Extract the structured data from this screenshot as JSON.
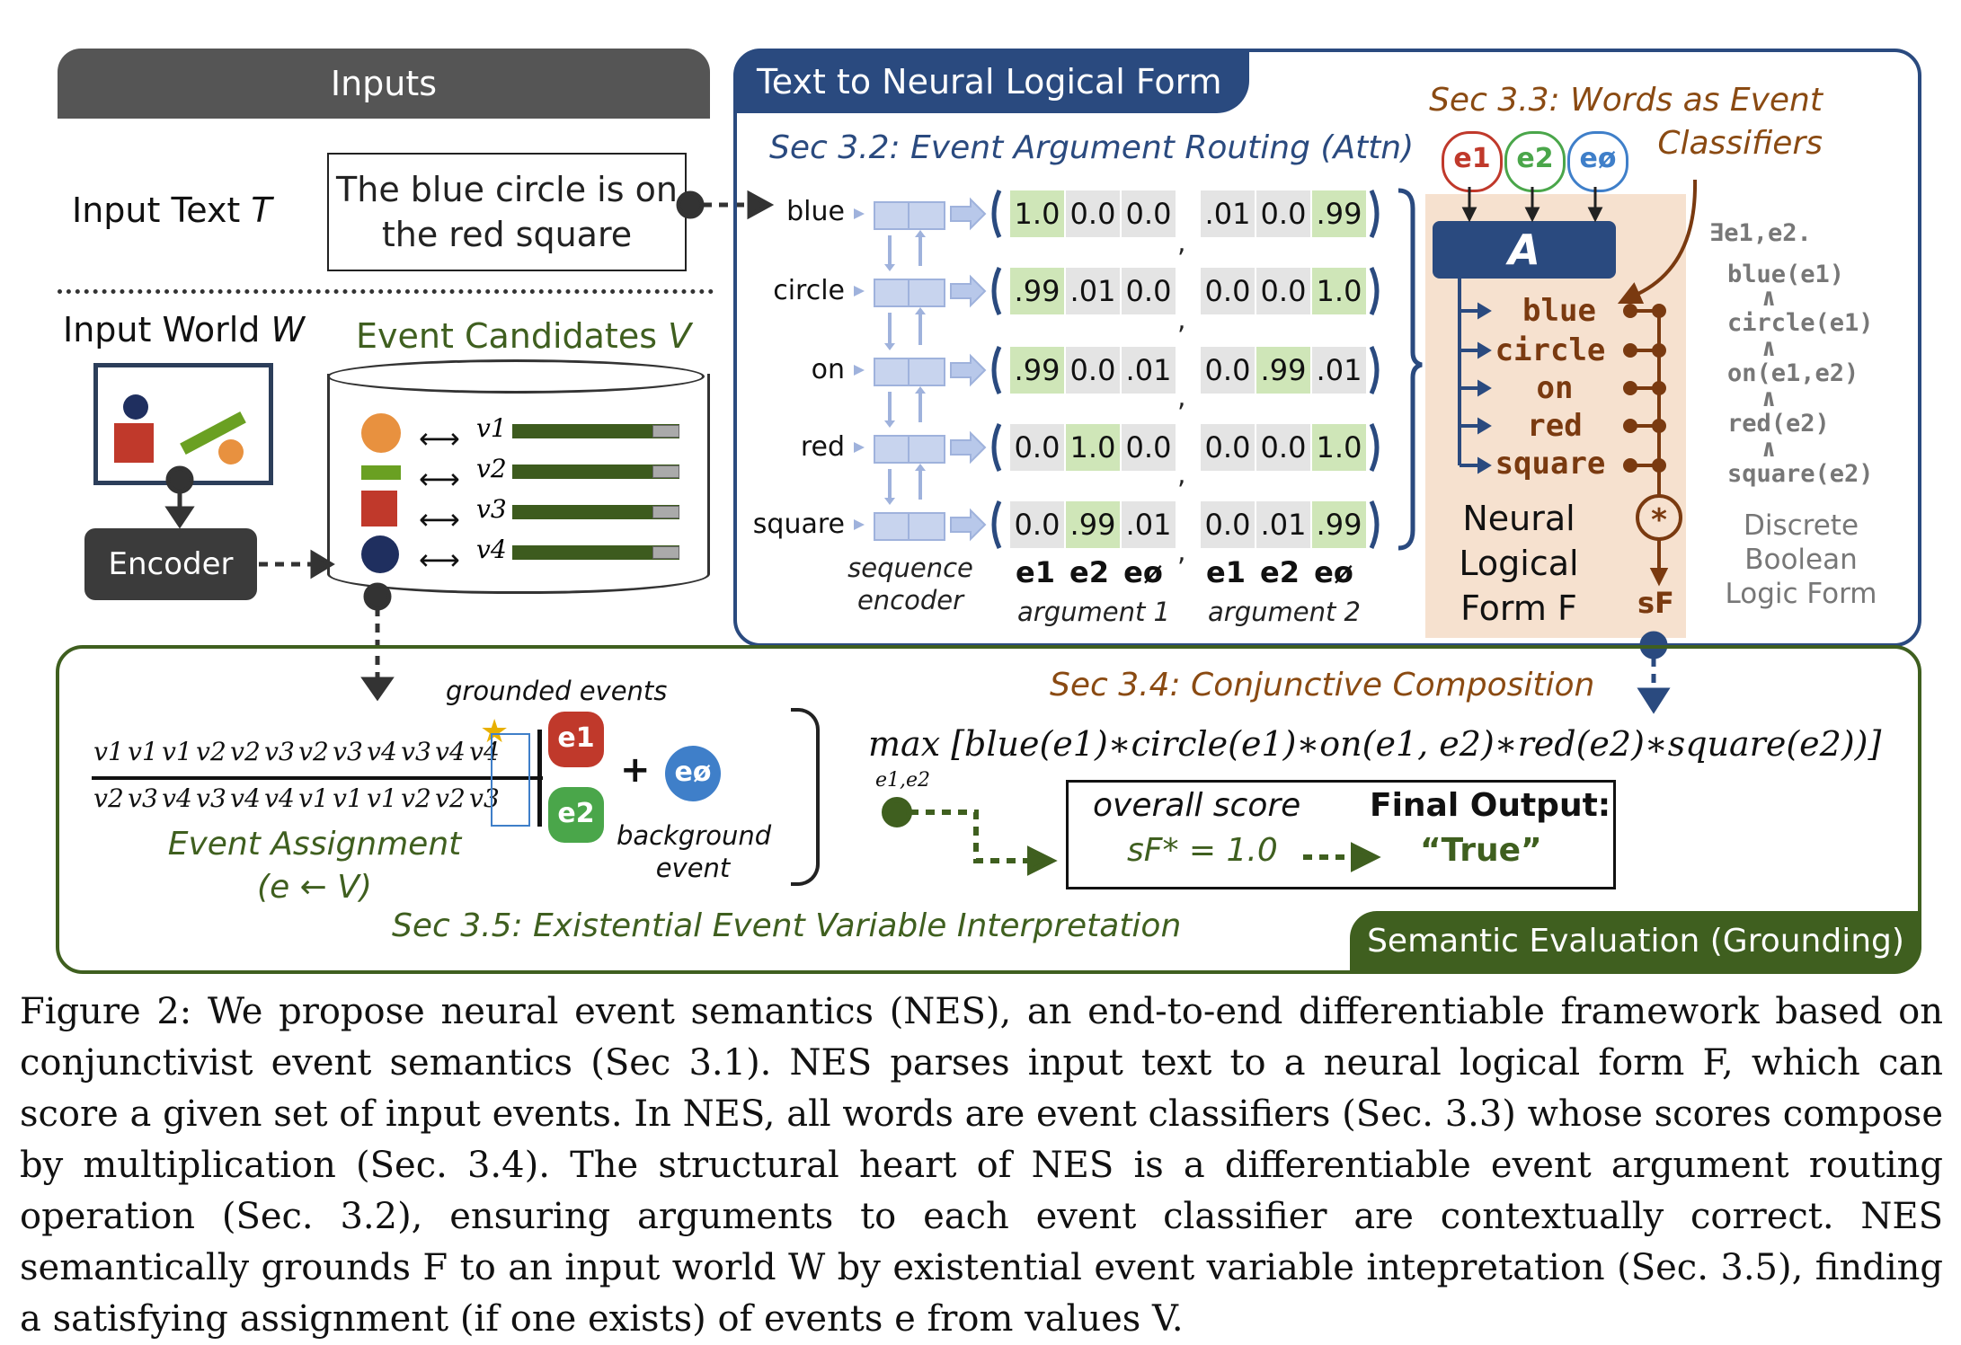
{
  "inputs_header": "Inputs",
  "input_text_label": "Input Text",
  "input_text_symbol": "T",
  "input_text_value": "The blue circle is on the red square",
  "input_world_label": "Input World",
  "input_world_symbol": "W",
  "encoder_label": "Encoder",
  "event_candidates_label": "Event Candidates",
  "event_candidates_symbol": "V",
  "candidates": [
    "v1",
    "v2",
    "v3",
    "v4"
  ],
  "nlf_header": "Text to Neural Logical Form",
  "sec32": "Sec 3.2: Event Argument Routing (Attn)",
  "sec33": "Sec 3.3: Words as Event Classifiers",
  "event_symbols": [
    "e1",
    "e2",
    "eø"
  ],
  "classifier_block": "A",
  "words": [
    "blue",
    "circle",
    "on",
    "red",
    "square"
  ],
  "arg1_values": [
    [
      "1.0",
      "0.0",
      "0.0"
    ],
    [
      ".99",
      ".01",
      "0.0"
    ],
    [
      ".99",
      "0.0",
      ".01"
    ],
    [
      "0.0",
      "1.0",
      "0.0"
    ],
    [
      "0.0",
      ".99",
      ".01"
    ]
  ],
  "arg2_values": [
    [
      ".01",
      "0.0",
      ".99"
    ],
    [
      "0.0",
      "0.0",
      "1.0"
    ],
    [
      "0.0",
      ".99",
      ".01"
    ],
    [
      "0.0",
      "0.0",
      "1.0"
    ],
    [
      "0.0",
      ".01",
      ".99"
    ]
  ],
  "sequence_encoder_label": "sequence encoder",
  "argument1_label": "argument 1",
  "argument2_label": "argument 2",
  "neural_logical_form_label": "Neural Logical Form F",
  "score_symbol": "sF",
  "discrete_logic": [
    "∃e1,e2.",
    "blue(e1)",
    "∧",
    "circle(e1)",
    "∧",
    "on(e1,e2)",
    "∧",
    "red(e2)",
    "∧",
    "square(e2)"
  ],
  "discrete_logic_label": "Discrete Boolean Logic Form",
  "grounded_events_label": "grounded events",
  "assignment_row1": [
    "v1",
    "v1",
    "v1",
    "v2",
    "v2",
    "v3",
    "v2",
    "v3",
    "v4",
    "v3",
    "v4",
    "v4"
  ],
  "assignment_row2": [
    "v2",
    "v3",
    "v4",
    "v3",
    "v4",
    "v4",
    "v1",
    "v1",
    "v1",
    "v2",
    "v2",
    "v3"
  ],
  "event_assignment_label": "Event Assignment",
  "event_assignment_formula": "(e ← V)",
  "background_event_label": "background event",
  "sec34": "Sec 3.4: Conjunctive Composition",
  "composition_formula": "max [blue(e1)∗circle(e1)∗on(e1, e2)∗red(e2)∗square(e2))]",
  "max_subscript": "e1,e2",
  "overall_score_label": "overall score",
  "overall_score_value": "sF* = 1.0",
  "final_output_label": "Final Output:",
  "final_output_value": "“True”",
  "sec35": "Sec 3.5: Existential Event Variable Interpretation",
  "semantic_eval_header": "Semantic Evaluation (Grounding)",
  "caption": "Figure 2: We propose neural event semantics (NES), an end-to-end differentiable framework based on conjunctivist event semantics (Sec 3.1). NES parses input text to a neural logical form F, which can score a given set of input events. In NES, all words are event classifiers (Sec. 3.3) whose scores compose by multiplication (Sec. 3.4). The structural heart of NES is a differentiable event argument routing operation (Sec. 3.2), ensuring arguments to each event classifier are contextually correct. NES semantically grounds F to an input world W by existential event variable intepretation (Sec. 3.5), finding a satisfying assignment (if one exists) of events e from values V.",
  "colors": {
    "nlf_blue": "#2a4a7f",
    "eval_green": "#3f5f1f",
    "classifier_bg": "#f6e1cf",
    "e1": "#c0392b",
    "e2": "#4aa64a",
    "e_bg": "#3f7fc9"
  }
}
